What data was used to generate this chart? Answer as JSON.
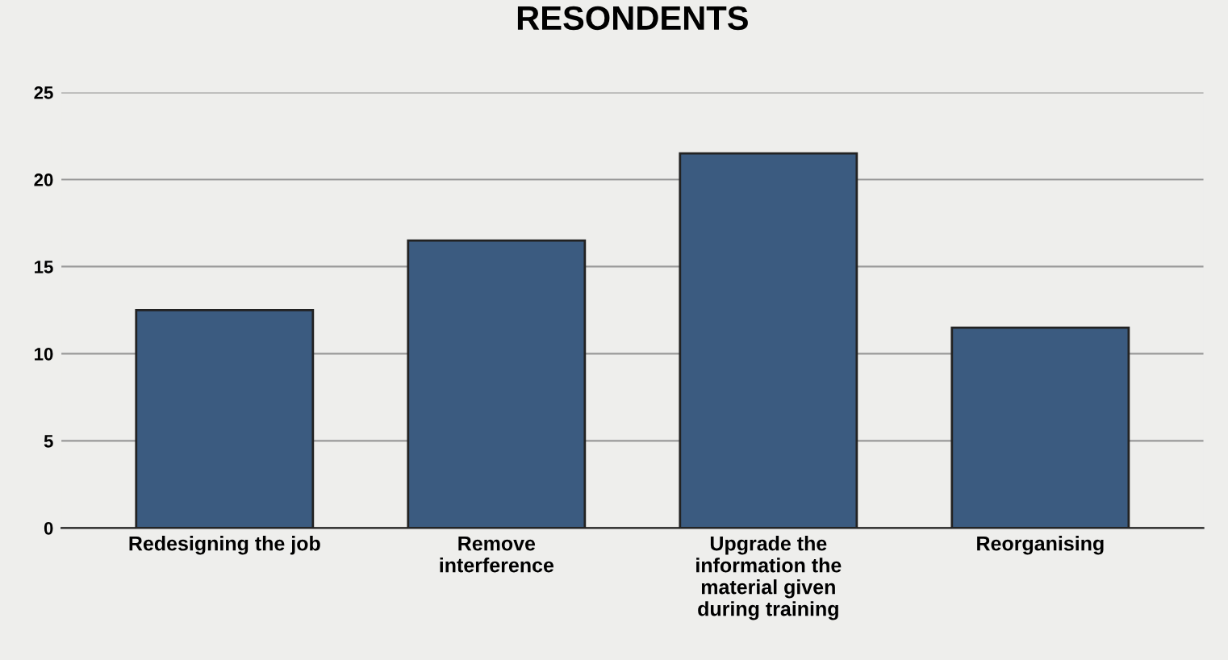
{
  "chart_data": {
    "type": "bar",
    "title": "RESONDENTS",
    "categories": [
      "Redesigning the job",
      "Remove\ninterference",
      "Upgrade the\ninformation the\nmaterial given\nduring training",
      "Reorganising"
    ],
    "values": [
      12.5,
      16.5,
      21.5,
      11.5
    ],
    "color": "#3b5b80",
    "ylim": [
      0,
      25
    ],
    "yticks": [
      0,
      5,
      10,
      15,
      20,
      25
    ],
    "grid": "y"
  }
}
